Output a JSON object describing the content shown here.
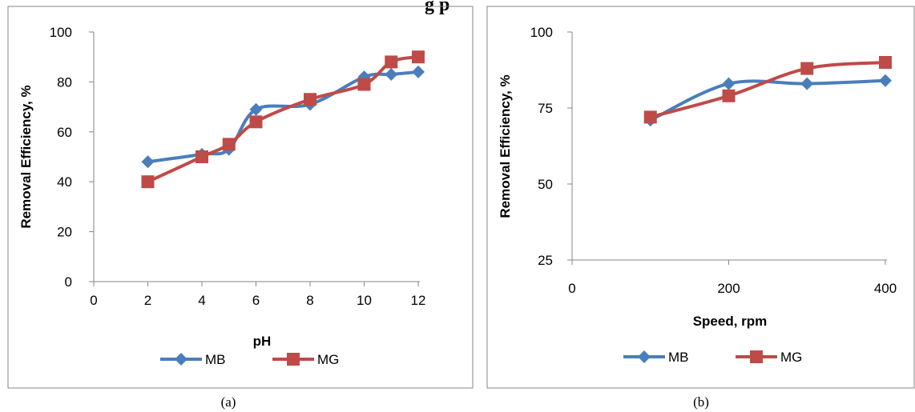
{
  "figure": {
    "top_text": "g p",
    "captions": [
      "(a)",
      "(b)"
    ]
  },
  "colors": {
    "MB": "#4a7ebb",
    "MG": "#be4b48"
  },
  "chart_data": [
    {
      "type": "line",
      "xlabel": "pH",
      "ylabel": "Removal Efficiency, %",
      "xlim": [
        0,
        12
      ],
      "ylim": [
        0,
        100
      ],
      "xticks": [
        "0",
        "2",
        "4",
        "6",
        "8",
        "10",
        "12"
      ],
      "yticks": [
        "0",
        "20",
        "40",
        "60",
        "80",
        "100"
      ],
      "grid": false,
      "legend": "bottom",
      "series": [
        {
          "name": "MB",
          "marker": "diamond",
          "x": [
            2,
            4,
            5,
            6,
            8,
            10,
            11,
            12
          ],
          "y": [
            48,
            51,
            53,
            69,
            71,
            82,
            83,
            84
          ]
        },
        {
          "name": "MG",
          "marker": "square",
          "x": [
            2,
            4,
            5,
            6,
            8,
            10,
            11,
            12
          ],
          "y": [
            40,
            50,
            55,
            64,
            73,
            79,
            88,
            90
          ]
        }
      ]
    },
    {
      "type": "line",
      "xlabel": "Speed, rpm",
      "ylabel": "Removal Efficiency, %",
      "xlim": [
        0,
        400
      ],
      "ylim": [
        25,
        100
      ],
      "xticks": [
        "0",
        "200",
        "400"
      ],
      "yticks": [
        "25",
        "50",
        "75",
        "100"
      ],
      "grid": false,
      "legend": "bottom",
      "series": [
        {
          "name": "MB",
          "marker": "diamond",
          "x": [
            100,
            200,
            300,
            400
          ],
          "y": [
            71,
            83,
            83,
            84
          ]
        },
        {
          "name": "MG",
          "marker": "square",
          "x": [
            100,
            200,
            300,
            400
          ],
          "y": [
            72,
            79,
            88,
            90
          ]
        }
      ]
    }
  ]
}
